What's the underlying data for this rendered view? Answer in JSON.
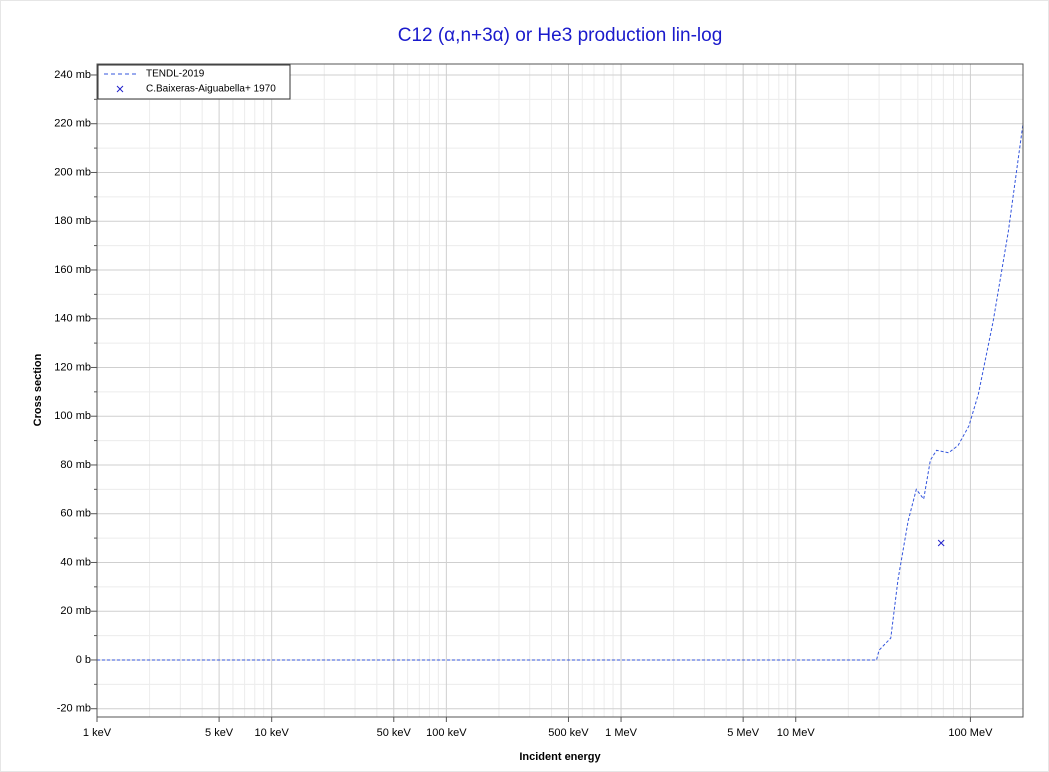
{
  "chart_data": {
    "type": "line",
    "title": "C12 (α,n+3α) or He3 production lin-log",
    "xlabel": "Incident energy",
    "ylabel": "Cross section",
    "xscale": "log",
    "grid": true,
    "legend": "upper left",
    "xlim": [
      1000,
      200000000
    ],
    "ylim": [
      -23.4,
      244.5
    ],
    "xticks": [
      {
        "value": 1000,
        "label": "1 keV"
      },
      {
        "value": 5000,
        "label": "5 keV"
      },
      {
        "value": 10000,
        "label": "10 keV"
      },
      {
        "value": 50000,
        "label": "50 keV"
      },
      {
        "value": 100000,
        "label": "100 keV"
      },
      {
        "value": 500000,
        "label": "500 keV"
      },
      {
        "value": 1000000,
        "label": "1 MeV"
      },
      {
        "value": 5000000,
        "label": "5 MeV"
      },
      {
        "value": 10000000,
        "label": "10 MeV"
      },
      {
        "value": 100000000,
        "label": "100 MeV"
      }
    ],
    "xminorticks": [
      2000,
      3000,
      4000,
      6000,
      7000,
      8000,
      9000,
      20000,
      30000,
      40000,
      60000,
      70000,
      80000,
      90000,
      200000,
      300000,
      400000,
      600000,
      700000,
      800000,
      900000,
      2000000,
      3000000,
      4000000,
      6000000,
      7000000,
      8000000,
      9000000,
      20000000,
      30000000,
      40000000,
      50000000,
      60000000,
      70000000,
      80000000,
      90000000,
      200000000
    ],
    "yticks": [
      {
        "value": -20,
        "label": "-20 mb"
      },
      {
        "value": 0,
        "label": "0 b"
      },
      {
        "value": 20,
        "label": "20 mb"
      },
      {
        "value": 40,
        "label": "40 mb"
      },
      {
        "value": 60,
        "label": "60 mb"
      },
      {
        "value": 80,
        "label": "80 mb"
      },
      {
        "value": 100,
        "label": "100 mb"
      },
      {
        "value": 120,
        "label": "120 mb"
      },
      {
        "value": 140,
        "label": "140 mb"
      },
      {
        "value": 160,
        "label": "160 mb"
      },
      {
        "value": 180,
        "label": "180 mb"
      },
      {
        "value": 200,
        "label": "200 mb"
      },
      {
        "value": 220,
        "label": "220 mb"
      },
      {
        "value": 240,
        "label": "240 mb"
      }
    ],
    "yminorticks": [
      -10,
      10,
      30,
      50,
      70,
      90,
      110,
      130,
      150,
      170,
      190,
      210,
      230
    ],
    "series": [
      {
        "name": "TENDL-2019",
        "color": "#3355dd",
        "style": "dashed",
        "x": [
          1000,
          29000000,
          30000000,
          35000000,
          38500000,
          44000000,
          49000000,
          54000000,
          59000000,
          64000000,
          75000000,
          85000000,
          98000000,
          111000000,
          135000000,
          165000000,
          200000000
        ],
        "values": [
          0,
          0,
          4,
          9,
          33,
          57,
          70,
          66,
          82,
          86,
          85,
          88,
          96,
          109,
          139,
          176,
          220
        ]
      },
      {
        "name": "C.Baixeras-Aiguabella+ 1970",
        "color": "#2222cc",
        "style": "marker",
        "x": [
          68000000
        ],
        "values": [
          48
        ]
      }
    ]
  }
}
